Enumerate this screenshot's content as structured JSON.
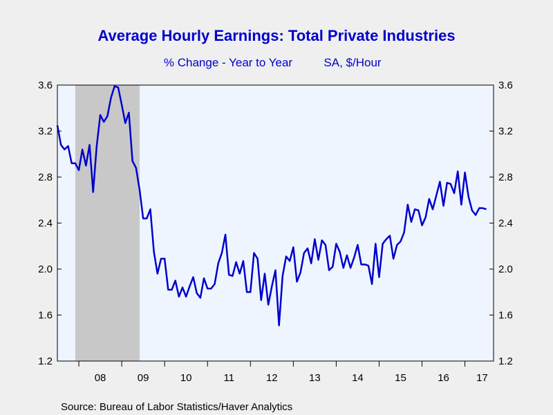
{
  "chart_data": {
    "type": "line",
    "title": "Average Hourly Earnings: Total Private Industries",
    "subtitle_left": "% Change - Year to Year",
    "subtitle_right": "SA, $/Hour",
    "source": "Source:  Bureau of Labor Statistics/Haver Analytics",
    "ylim": [
      1.2,
      3.6
    ],
    "yticks": [
      "1.2",
      "1.6",
      "2.0",
      "2.4",
      "2.8",
      "3.2",
      "3.6"
    ],
    "x_start": 2007.5,
    "x_end": 2017.667,
    "x_step": 0.08333,
    "year_labels": [
      "08",
      "09",
      "10",
      "11",
      "12",
      "13",
      "14",
      "15",
      "16",
      "17"
    ],
    "year_label_positions": [
      2008.5,
      2009.5,
      2010.5,
      2011.5,
      2012.5,
      2013.5,
      2014.5,
      2015.5,
      2016.5,
      2017.4
    ],
    "recession": {
      "start": 2007.917,
      "end": 2009.417
    },
    "grid": false,
    "colors": {
      "line": "#0000cc",
      "title": "#0000cc",
      "recession": "#c8c8c8",
      "plot_bg": "#eef5ff"
    },
    "series": [
      {
        "values": [
          3.25,
          3.08,
          3.04,
          3.07,
          2.92,
          2.92,
          2.86,
          3.04,
          2.9,
          3.08,
          2.67,
          3.07,
          3.34,
          3.28,
          3.33,
          3.49,
          3.59,
          3.58,
          3.43,
          3.27,
          3.36,
          2.94,
          2.88,
          2.69,
          2.44,
          2.44,
          2.52,
          2.15,
          1.96,
          2.09,
          2.09,
          1.82,
          1.82,
          1.9,
          1.76,
          1.84,
          1.76,
          1.85,
          1.93,
          1.79,
          1.75,
          1.92,
          1.83,
          1.83,
          1.87,
          2.05,
          2.14,
          2.3,
          1.95,
          1.94,
          2.06,
          1.96,
          2.07,
          1.8,
          1.8,
          2.14,
          2.09,
          1.73,
          1.96,
          1.69,
          1.85,
          1.99,
          1.51,
          1.94,
          2.11,
          2.07,
          2.19,
          1.89,
          1.97,
          2.14,
          2.18,
          2.05,
          2.26,
          2.08,
          2.25,
          2.21,
          1.99,
          2.02,
          2.22,
          2.15,
          2.01,
          2.12,
          2.01,
          2.1,
          2.21,
          2.04,
          2.04,
          2.03,
          1.87,
          2.22,
          1.93,
          2.22,
          2.26,
          2.29,
          2.09,
          2.21,
          2.24,
          2.32,
          2.56,
          2.41,
          2.52,
          2.51,
          2.38,
          2.45,
          2.61,
          2.52,
          2.64,
          2.76,
          2.55,
          2.75,
          2.74,
          2.66,
          2.85,
          2.56,
          2.84,
          2.63,
          2.51,
          2.47,
          2.53,
          2.53,
          2.52
        ]
      }
    ]
  }
}
